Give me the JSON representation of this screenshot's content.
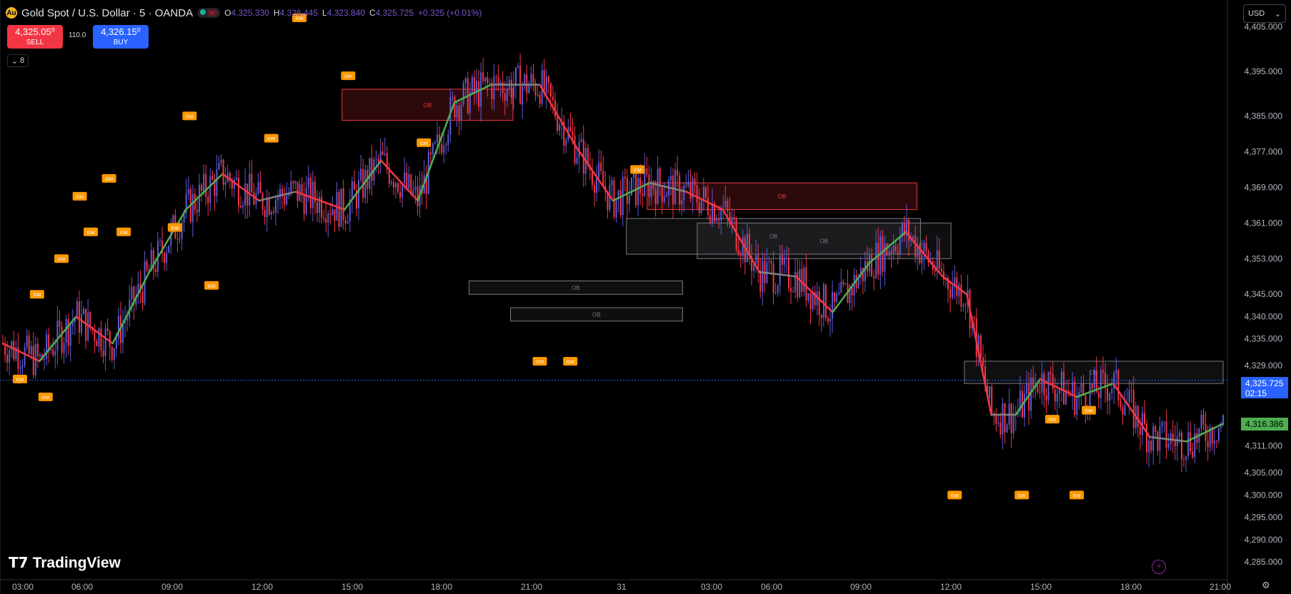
{
  "header": {
    "symbol_title": "Gold Spot / U.S. Dollar · 5 · OANDA",
    "market_badge": "≈",
    "ohlc": [
      {
        "key": "O",
        "value": "4,325.330"
      },
      {
        "key": "H",
        "value": "4,326.445"
      },
      {
        "key": "L",
        "value": "4,323.840"
      },
      {
        "key": "C",
        "value": "4,325.725"
      }
    ],
    "change": "+0.325 (+0.01%)"
  },
  "trade": {
    "sell_price": "4,325.05⁰",
    "sell_label": "SELL",
    "spread": "110.0",
    "buy_price": "4,326.15⁰",
    "buy_label": "BUY"
  },
  "indicators_toggle": {
    "count": "8"
  },
  "currency": {
    "selected": "USD"
  },
  "logo_text": "TradingView",
  "price_axis": {
    "labels": [
      "4,405.000",
      "4,395.000",
      "4,385.000",
      "4,377.000",
      "4,369.000",
      "4,361.000",
      "4,353.000",
      "4,345.000",
      "4,340.000",
      "4,335.000",
      "4,329.000",
      "4,311.000",
      "4,305.000",
      "4,300.000",
      "4,295.000",
      "4,290.000",
      "4,285.000"
    ],
    "last_price": "4,325.725",
    "countdown": "02:15",
    "ma_price": "4,316.386"
  },
  "time_axis": {
    "labels": [
      "03:00",
      "06:00",
      "09:00",
      "12:00",
      "15:00",
      "18:00",
      "21:00",
      "31",
      "03:00",
      "06:00",
      "09:00",
      "12:00",
      "15:00",
      "18:00",
      "21:00"
    ]
  },
  "colors": {
    "background": "#000000",
    "up": "#5b5bd6",
    "down": "#f23645",
    "ma_up": "#4caf50",
    "ma_down": "#f23645",
    "ma_flat": "#808080",
    "idm_marker": "#ff9800",
    "ob_bear": "#f23645",
    "ob_neutral": "#787b86"
  },
  "chart_data": {
    "type": "candlestick",
    "ylim": [
      4281,
      4411
    ],
    "ma_series": [
      {
        "t": 0.0,
        "v": 4334
      },
      {
        "t": 0.03,
        "v": 4330
      },
      {
        "t": 0.06,
        "v": 4340
      },
      {
        "t": 0.09,
        "v": 4334
      },
      {
        "t": 0.12,
        "v": 4350
      },
      {
        "t": 0.15,
        "v": 4364
      },
      {
        "t": 0.18,
        "v": 4372
      },
      {
        "t": 0.21,
        "v": 4366
      },
      {
        "t": 0.24,
        "v": 4368
      },
      {
        "t": 0.28,
        "v": 4364
      },
      {
        "t": 0.31,
        "v": 4375
      },
      {
        "t": 0.34,
        "v": 4366
      },
      {
        "t": 0.37,
        "v": 4388
      },
      {
        "t": 0.4,
        "v": 4392
      },
      {
        "t": 0.44,
        "v": 4392
      },
      {
        "t": 0.47,
        "v": 4378
      },
      {
        "t": 0.5,
        "v": 4366
      },
      {
        "t": 0.53,
        "v": 4370
      },
      {
        "t": 0.56,
        "v": 4368
      },
      {
        "t": 0.59,
        "v": 4364
      },
      {
        "t": 0.62,
        "v": 4350
      },
      {
        "t": 0.65,
        "v": 4349
      },
      {
        "t": 0.68,
        "v": 4341
      },
      {
        "t": 0.71,
        "v": 4352
      },
      {
        "t": 0.74,
        "v": 4359
      },
      {
        "t": 0.77,
        "v": 4349
      },
      {
        "t": 0.79,
        "v": 4345
      },
      {
        "t": 0.81,
        "v": 4318
      },
      {
        "t": 0.83,
        "v": 4318
      },
      {
        "t": 0.85,
        "v": 4326
      },
      {
        "t": 0.88,
        "v": 4322
      },
      {
        "t": 0.91,
        "v": 4325
      },
      {
        "t": 0.94,
        "v": 4313
      },
      {
        "t": 0.97,
        "v": 4312
      },
      {
        "t": 1.0,
        "v": 4316
      }
    ],
    "idm_markers": [
      {
        "t": 0.014,
        "v": 4326
      },
      {
        "t": 0.028,
        "v": 4345
      },
      {
        "t": 0.048,
        "v": 4353
      },
      {
        "t": 0.035,
        "v": 4322
      },
      {
        "t": 0.063,
        "v": 4367
      },
      {
        "t": 0.072,
        "v": 4359
      },
      {
        "t": 0.087,
        "v": 4371
      },
      {
        "t": 0.099,
        "v": 4359
      },
      {
        "t": 0.141,
        "v": 4360
      },
      {
        "t": 0.153,
        "v": 4385
      },
      {
        "t": 0.171,
        "v": 4347
      },
      {
        "t": 0.22,
        "v": 4380
      },
      {
        "t": 0.243,
        "v": 4407
      },
      {
        "t": 0.283,
        "v": 4394
      },
      {
        "t": 0.345,
        "v": 4379
      },
      {
        "t": 0.44,
        "v": 4330
      },
      {
        "t": 0.465,
        "v": 4330
      },
      {
        "t": 0.52,
        "v": 4373
      },
      {
        "t": 0.78,
        "v": 4300
      },
      {
        "t": 0.835,
        "v": 4300
      },
      {
        "t": 0.86,
        "v": 4317
      },
      {
        "t": 0.88,
        "v": 4300
      },
      {
        "t": 0.89,
        "v": 4319
      }
    ],
    "ob_zones": [
      {
        "label": "OB",
        "kind": "bear",
        "t0": 0.278,
        "t1": 0.418,
        "top": 4391,
        "bottom": 4384
      },
      {
        "label": "OB",
        "kind": "bear",
        "t0": 0.528,
        "t1": 0.749,
        "top": 4370,
        "bottom": 4364
      },
      {
        "label": "OB",
        "kind": "neutral",
        "t0": 0.511,
        "t1": 0.752,
        "top": 4362,
        "bottom": 4354
      },
      {
        "label": "OB",
        "kind": "neutral",
        "t0": 0.569,
        "t1": 0.777,
        "top": 4361,
        "bottom": 4353
      },
      {
        "label": "OB",
        "kind": "neutral",
        "t0": 0.382,
        "t1": 0.557,
        "top": 4348,
        "bottom": 4345
      },
      {
        "label": "OB",
        "kind": "neutral",
        "t0": 0.416,
        "t1": 0.557,
        "top": 4342,
        "bottom": 4339
      },
      {
        "label": "OB",
        "kind": "neutral",
        "t0": 0.788,
        "t1": 1.0,
        "top": 4330,
        "bottom": 4325
      }
    ]
  }
}
